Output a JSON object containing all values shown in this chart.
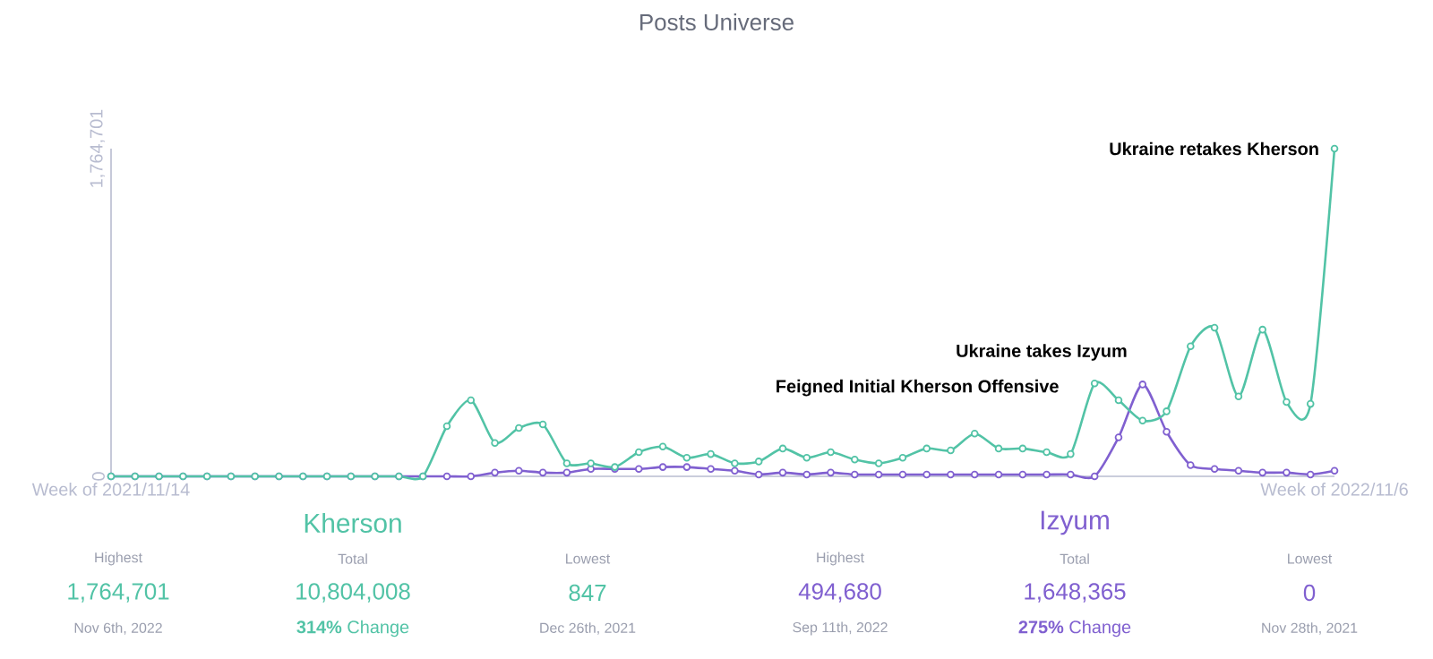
{
  "chart_data": {
    "type": "line",
    "title": "Posts Universe",
    "x": [
      "2021-11-14",
      "2021-11-21",
      "2021-11-28",
      "2021-12-05",
      "2021-12-12",
      "2021-12-19",
      "2021-12-26",
      "2022-01-02",
      "2022-01-09",
      "2022-01-16",
      "2022-01-23",
      "2022-01-30",
      "2022-02-06",
      "2022-02-13",
      "2022-02-20",
      "2022-02-27",
      "2022-03-06",
      "2022-03-13",
      "2022-03-20",
      "2022-03-27",
      "2022-04-03",
      "2022-04-10",
      "2022-04-17",
      "2022-04-24",
      "2022-05-01",
      "2022-05-08",
      "2022-05-15",
      "2022-05-22",
      "2022-05-29",
      "2022-06-05",
      "2022-06-12",
      "2022-06-19",
      "2022-06-26",
      "2022-07-03",
      "2022-07-10",
      "2022-07-17",
      "2022-07-24",
      "2022-07-31",
      "2022-08-07",
      "2022-08-14",
      "2022-08-21",
      "2022-08-28",
      "2022-09-04",
      "2022-09-11",
      "2022-09-18",
      "2022-09-25",
      "2022-10-02",
      "2022-10-09",
      "2022-10-16",
      "2022-10-23",
      "2022-10-30",
      "2022-11-06"
    ],
    "series": [
      {
        "name": "Kherson",
        "color": "#52c3a6",
        "values": [
          0,
          0,
          0,
          0,
          0,
          0,
          0,
          0,
          0,
          0,
          0,
          0,
          0,
          0,
          270000,
          410000,
          180000,
          260000,
          280000,
          70000,
          70000,
          50000,
          130000,
          160000,
          100000,
          120000,
          70000,
          80000,
          150000,
          100000,
          130000,
          90000,
          70000,
          100000,
          150000,
          140000,
          230000,
          150000,
          150000,
          130000,
          120000,
          500000,
          410000,
          300000,
          350000,
          700000,
          800000,
          430000,
          790000,
          400000,
          390000,
          1764701
        ]
      },
      {
        "name": "Izyum",
        "color": "#8060d0",
        "values": [
          0,
          0,
          0,
          0,
          0,
          0,
          0,
          0,
          0,
          0,
          0,
          0,
          0,
          0,
          0,
          0,
          20000,
          30000,
          20000,
          20000,
          40000,
          40000,
          40000,
          50000,
          50000,
          40000,
          30000,
          10000,
          20000,
          10000,
          20000,
          10000,
          10000,
          10000,
          10000,
          10000,
          10000,
          10000,
          10000,
          10000,
          10000,
          0,
          210000,
          494680,
          240000,
          60000,
          40000,
          30000,
          20000,
          20000,
          10000,
          30000
        ]
      }
    ],
    "xlim": [
      "2021-11-14",
      "2022-11-06"
    ],
    "xticks": [
      {
        "value": "2021-11-14",
        "label": "Week of 2021/11/14"
      },
      {
        "value": "2022-11-06",
        "label": "Week of 2022/11/6"
      }
    ],
    "ylim": [
      0,
      1764701
    ],
    "yticks": [
      0,
      {
        "value": 1764701,
        "label": "1,764,701"
      }
    ],
    "grid": false,
    "marker": "circle",
    "line_style": "solid",
    "annotations": [
      "Feigned Initial Kherson Offensive",
      {
        "text": "Ukraine takes Izyum",
        "x": "2022-09-11",
        "y": 494680
      },
      {
        "text": "Ukraine retakes Kherson",
        "x": "2022-11-06",
        "y": 1764701
      },
      "Highest",
      "1,764,701",
      "Nov 6th, 2022",
      "Total",
      "10,804,008",
      "**314%** Change",
      "Lowest",
      "847",
      "Dec 26th, 2021",
      "Highest",
      "494,680",
      "Sep 11th, 2022",
      "Total",
      "1,648,365",
      "**275%** Change",
      "Lowest",
      "0",
      "Nov 28th, 2021"
    ]
  }
}
